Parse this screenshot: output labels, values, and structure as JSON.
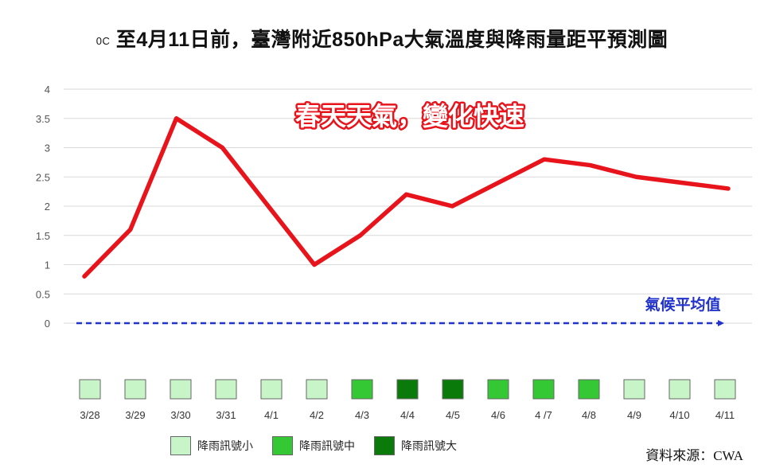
{
  "title": {
    "unit": "0C",
    "text": "至4月11日前，臺灣附近850hPa大氣溫度與降雨量距平預測圖"
  },
  "annotation": "春天天氣，變化快速",
  "baseline_label": "氣候平均值",
  "source": "資料來源：CWA",
  "colors": {
    "line": "#e8141c",
    "baseline": "#2233cc",
    "annotation_fill": "#ffffff",
    "annotation_stroke": "#e8141c",
    "rain_small": "#c8f5c8",
    "rain_medium": "#34c834",
    "rain_large": "#0a7a0a"
  },
  "legend": [
    {
      "label": "降雨訊號小",
      "level": "small"
    },
    {
      "label": "降雨訊號中",
      "level": "medium"
    },
    {
      "label": "降雨訊號大",
      "level": "large"
    }
  ],
  "chart_data": {
    "type": "line",
    "categories": [
      "3/28",
      "3/29",
      "3/30",
      "3/31",
      "4/1",
      "4/2",
      "4/3",
      "4/4",
      "4/5",
      "4/6",
      "4 /7",
      "4/8",
      "4/9",
      "4/10",
      "4/11"
    ],
    "series": [
      {
        "values": [
          0.8,
          1.6,
          3.5,
          3.0,
          2.0,
          1.0,
          1.5,
          2.2,
          2.0,
          2.4,
          2.8,
          2.7,
          2.5,
          2.4,
          2.3
        ]
      }
    ],
    "y_ticks": [
      "0",
      "0.5",
      "1",
      "1.5",
      "2",
      "2.5",
      "3",
      "3.5",
      "4"
    ],
    "ylim": [
      0,
      4
    ],
    "grid": true,
    "rain_signal": [
      "small",
      "small",
      "small",
      "small",
      "small",
      "small",
      "medium",
      "large",
      "large",
      "medium",
      "medium",
      "medium",
      "small",
      "small",
      "small"
    ]
  }
}
